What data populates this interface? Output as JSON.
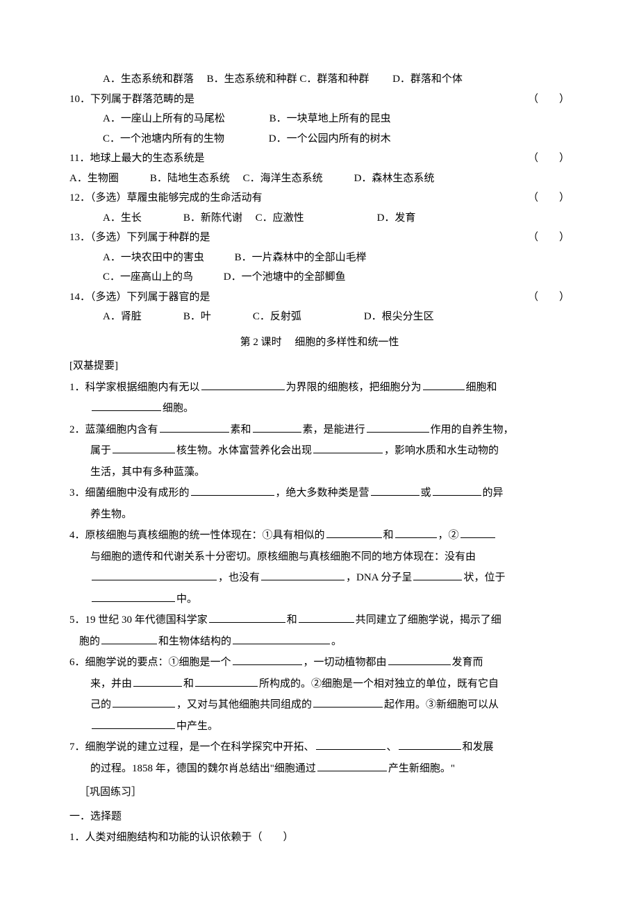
{
  "q9": {
    "opts": "A．生态系统和群落　 B．生态系统和种群 C．群落和种群　 　D．群落和个体"
  },
  "q10": {
    "stem": "10．下列属于群落范畴的是",
    "paren": "（　　）",
    "a": "A．一座山上所有的马尾松",
    "b": "B．一块草地上所有的昆虫",
    "c": "C．一个池塘内所有的生物",
    "d": "D．一个公园内所有的树木"
  },
  "q11": {
    "stem": "11．地球上最大的生态系统是",
    "paren": "（　　）",
    "opts": "A．生物圈　　　B．陆地生态系统　 C．海洋生态系统　　　D．森林生态系统"
  },
  "q12": {
    "stem": "12．（多选）草履虫能够完成的生命活动有",
    "paren": "（　　）",
    "opts": "A．生长　　　　B．新陈代谢　 C．应激性　　　　　　　D．发育"
  },
  "q13": {
    "stem": "13．（多选）下列属于种群的是",
    "paren": "（　　）",
    "a": "A．一块农田中的害虫",
    "b": "B．一片森林中的全部山毛榉",
    "c": "C．一座高山上的鸟",
    "d": "D．一个池塘中的全部鲫鱼"
  },
  "q14": {
    "stem": "14．（多选）下列属于器官的是",
    "paren": "（　　）",
    "opts": "A．肾脏　　　　B．叶　　　　C．反射弧　　　　　　D．根尖分生区"
  },
  "section": "第 2 课时　 细胞的多样性和统一性",
  "heading1": "[双基提要]",
  "f1a": "1．科学家根据细胞内有无以",
  "f1b": "为界限的细胞核，把细胞分为",
  "f1c": "细胞和",
  "f1d": "细胞。",
  "f2a": "2．蓝藻细胞内含有",
  "f2b": "素和",
  "f2c": "素，是能进行",
  "f2d": "作用的自养生物，",
  "f2e": "属于",
  "f2f": "核生物。水体富营养化会出现",
  "f2g": "，影响水质和水生动物的",
  "f2h": "生活，其中有多种蓝藻。",
  "f3a": "3．细菌细胞中没有成形的",
  "f3b": "，绝大多数种类是营",
  "f3c": "或",
  "f3d": "的异",
  "f3e": "养生物。",
  "f4a": "4．原核细胞与真核细胞的统一性体现在：①具有相似的",
  "f4b": "和",
  "f4c": "，②",
  "f4d": "与细胞的遗传和代谢关系十分密切。原核细胞与真核细胞不同的地方体现在：没有由",
  "f4e": "，也没有",
  "f4f": "，DNA 分子呈",
  "f4g": "状，位于",
  "f4h": "中。",
  "f5a": "5．19 世纪 30 年代德国科学家",
  "f5b": "和",
  "f5c": "共同建立了细胞学说，揭示了细",
  "f5d": "胞的",
  "f5e": "和生物体结构的",
  "f5f": "。",
  "f6a": "6．细胞学说的要点：①细胞是一个",
  "f6b": "，一切动植物都由",
  "f6c": "发育而",
  "f6d": "来，并由",
  "f6e": "和",
  "f6f": "所构成的。②细胞是一个相对独立的单位，既有它自",
  "f6g": "己的",
  "f6h": "，又对与其他细胞共同组成的",
  "f6i": "起作用。③新细胞可以从",
  "f6j": "中产生。",
  "f7a": "7．细胞学说的建立过程，是一个在科学探究中开拓、",
  "f7b": "、",
  "f7c": "和发展",
  "f7d": "的过程。1858 年，德国的魏尔肖总结出\"细胞通过",
  "f7e": "产生新细胞。\"",
  "heading2": "［巩固练习］",
  "heading3": "一．选择题",
  "p1": "1．人类对细胞结构和功能的认识依赖于（　　）"
}
